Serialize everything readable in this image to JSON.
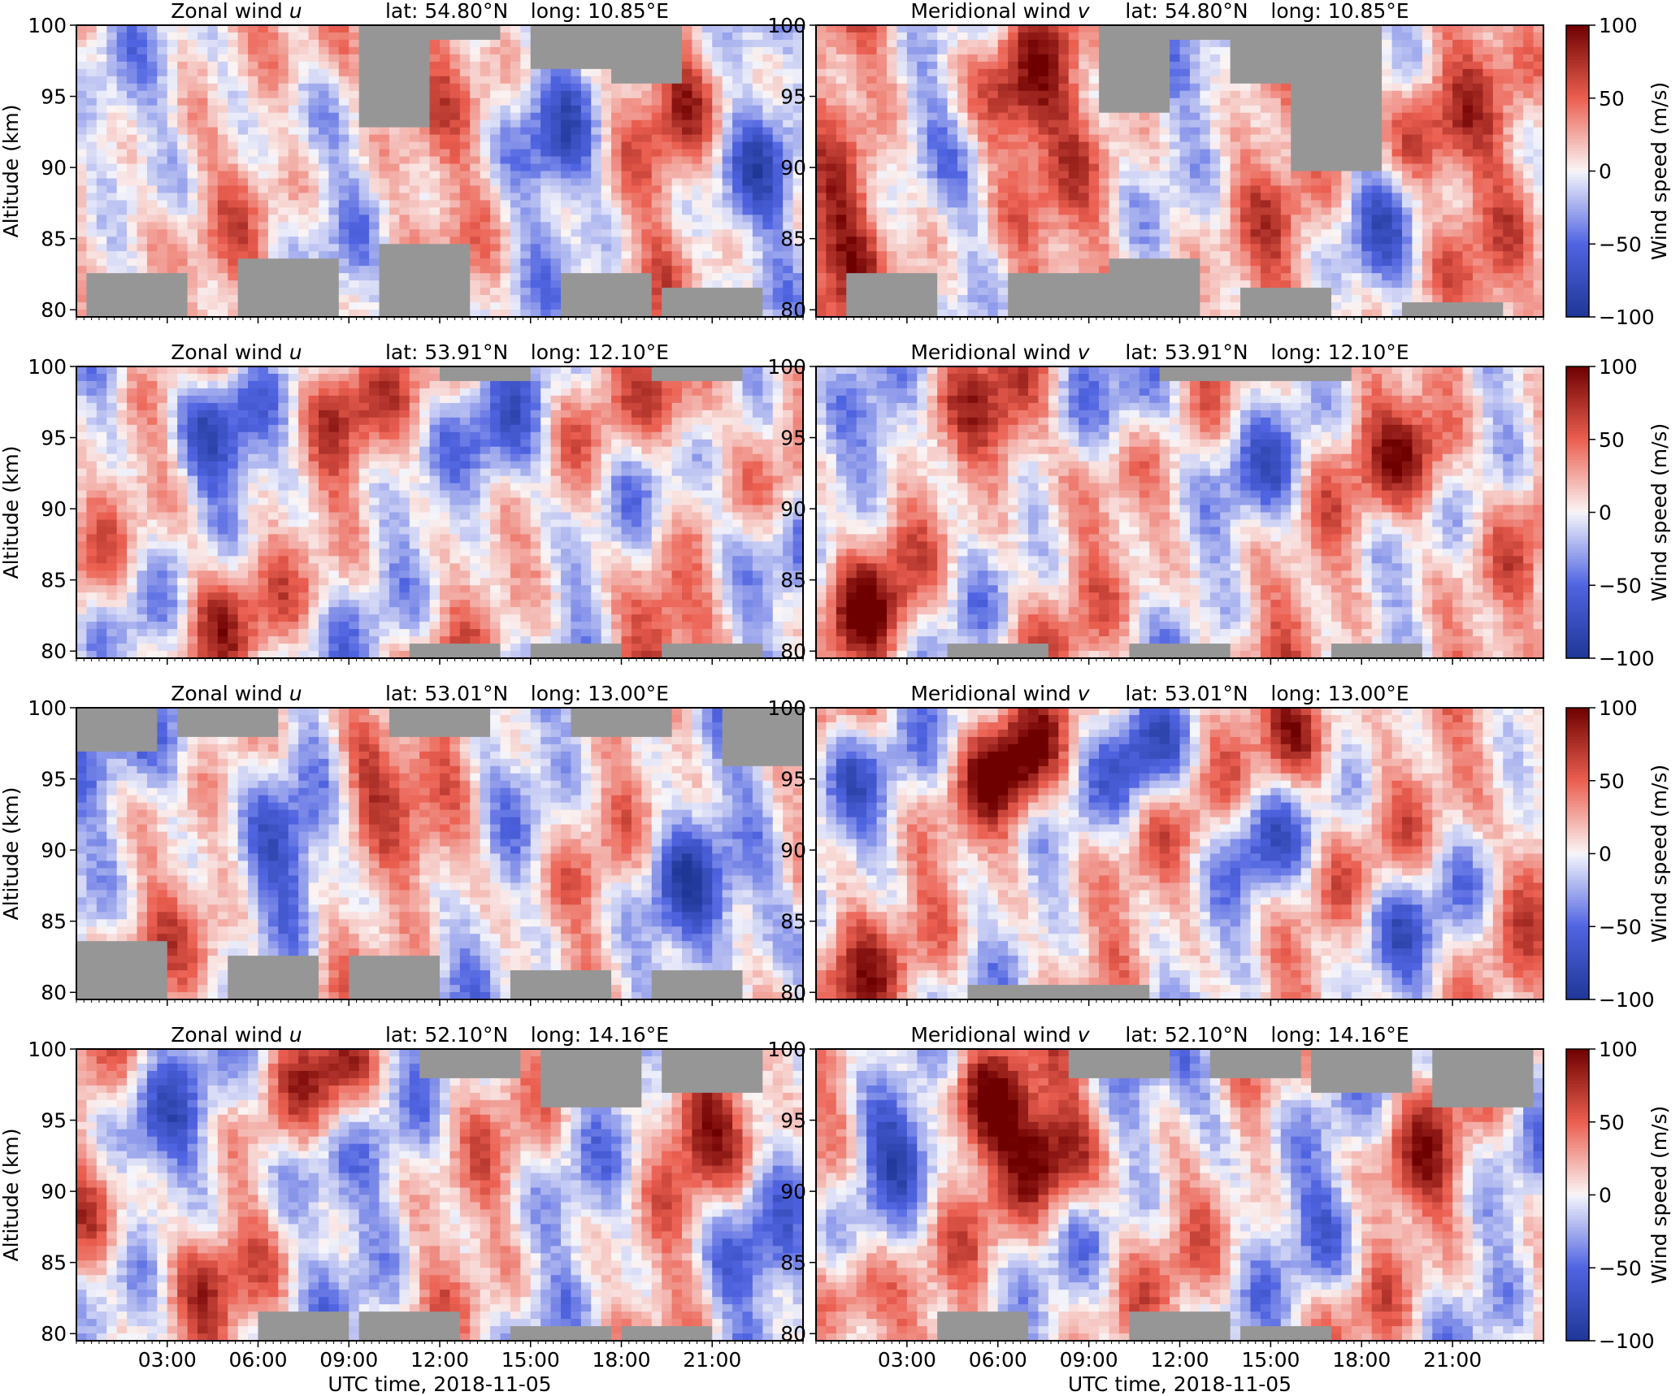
{
  "figure": {
    "xlabel": "UTC time, 2018-11-05",
    "ylabel": "Altitude (km)",
    "colorbar_label": "Wind speed (m/s)",
    "colormap": "seismic (blue-white-red)",
    "missing_data_color": "#969696"
  },
  "chart_data": [
    {
      "type": "heatmap",
      "component": "Zonal wind",
      "symbol": "u",
      "lat": "lat: 54.80°N",
      "long": "long: 10.85°E",
      "x_ticks": [
        "03:00",
        "06:00",
        "09:00",
        "12:00",
        "15:00",
        "18:00",
        "21:00"
      ],
      "y_ticks": [
        "80",
        "85",
        "90",
        "95",
        "100"
      ],
      "x_range_hours": [
        0,
        24
      ],
      "y_range_km": [
        80,
        100
      ],
      "c_range": [
        -100,
        100
      ],
      "seed": 11,
      "bias": 8,
      "amp": 55,
      "diag": 0.0,
      "red_blobs": [
        [
          8.7,
          98,
          45
        ],
        [
          20.2,
          95,
          40
        ],
        [
          1.5,
          86,
          35
        ]
      ],
      "blue_blobs": [
        [
          5.0,
          96,
          -40
        ],
        [
          16.0,
          92,
          -45
        ],
        [
          22.5,
          90,
          -40
        ]
      ],
      "gap_top_to": [
        [
          11.0,
          93
        ],
        [
          12.5,
          99
        ],
        [
          16.5,
          97
        ],
        [
          18.5,
          96
        ]
      ],
      "gap_bottom_from": [
        [
          2.0,
          83
        ],
        [
          7.0,
          84
        ],
        [
          11.5,
          85
        ],
        [
          17.5,
          83
        ],
        [
          21.0,
          82
        ]
      ]
    },
    {
      "type": "heatmap",
      "component": "Meridional wind",
      "symbol": "v",
      "lat": "lat: 54.80°N",
      "long": "long: 10.85°E",
      "x_ticks": [
        "03:00",
        "06:00",
        "09:00",
        "12:00",
        "15:00",
        "18:00",
        "21:00"
      ],
      "y_ticks": [
        "80",
        "85",
        "90",
        "95",
        "100"
      ],
      "x_range_hours": [
        0,
        24
      ],
      "y_range_km": [
        80,
        100
      ],
      "c_range": [
        -100,
        100
      ],
      "seed": 23,
      "bias": 18,
      "amp": 55,
      "diag": 0.0,
      "red_blobs": [
        [
          6.5,
          95,
          70
        ],
        [
          20.0,
          93,
          45
        ],
        [
          0.5,
          85,
          45
        ]
      ],
      "blue_blobs": [
        [
          3.0,
          93,
          -35
        ],
        [
          13.5,
          96,
          -45
        ],
        [
          18.5,
          86,
          -40
        ]
      ],
      "gap_top_to": [
        [
          11.0,
          94
        ],
        [
          12.5,
          99
        ],
        [
          14.5,
          96
        ],
        [
          17.0,
          90
        ]
      ],
      "gap_bottom_from": [
        [
          2.5,
          83
        ],
        [
          8.0,
          83
        ],
        [
          11.0,
          84
        ],
        [
          15.5,
          82
        ],
        [
          21.0,
          81
        ]
      ]
    },
    {
      "type": "heatmap",
      "component": "Zonal wind",
      "symbol": "u",
      "lat": "lat: 53.91°N",
      "long": "long: 12.10°E",
      "x_ticks": [
        "03:00",
        "06:00",
        "09:00",
        "12:00",
        "15:00",
        "18:00",
        "21:00"
      ],
      "y_ticks": [
        "80",
        "85",
        "90",
        "95",
        "100"
      ],
      "x_range_hours": [
        0,
        24
      ],
      "y_range_km": [
        80,
        100
      ],
      "c_range": [
        -100,
        100
      ],
      "seed": 37,
      "bias": 5,
      "amp": 55,
      "diag": -3.0,
      "red_blobs": [
        [
          8.5,
          98,
          60
        ],
        [
          20.0,
          97,
          60
        ],
        [
          4.5,
          84,
          50
        ],
        [
          19.0,
          83,
          45
        ]
      ],
      "blue_blobs": [
        [
          4.5,
          96,
          -75
        ],
        [
          14.5,
          94,
          -50
        ],
        [
          22.0,
          88,
          -40
        ]
      ],
      "gap_top_to": [
        [
          13.5,
          99
        ],
        [
          20.5,
          99
        ]
      ],
      "gap_bottom_from": [
        [
          12.5,
          81
        ],
        [
          16.5,
          81
        ],
        [
          21.0,
          81
        ]
      ]
    },
    {
      "type": "heatmap",
      "component": "Meridional wind",
      "symbol": "v",
      "lat": "lat: 53.91°N",
      "long": "long: 12.10°E",
      "x_ticks": [
        "03:00",
        "06:00",
        "09:00",
        "12:00",
        "15:00",
        "18:00",
        "21:00"
      ],
      "y_ticks": [
        "80",
        "85",
        "90",
        "95",
        "100"
      ],
      "x_range_hours": [
        0,
        24
      ],
      "y_range_km": [
        80,
        100
      ],
      "c_range": [
        -100,
        100
      ],
      "seed": 51,
      "bias": 12,
      "amp": 55,
      "diag": -2.5,
      "red_blobs": [
        [
          6.5,
          96,
          60
        ],
        [
          20.0,
          93,
          65
        ],
        [
          2.0,
          83,
          55
        ]
      ],
      "blue_blobs": [
        [
          2.5,
          95,
          -40
        ],
        [
          11.0,
          97,
          -55
        ],
        [
          15.0,
          92,
          -40
        ]
      ],
      "gap_top_to": [
        [
          13.0,
          99
        ],
        [
          16.0,
          99
        ]
      ],
      "gap_bottom_from": [
        [
          6.0,
          81
        ],
        [
          12.0,
          81
        ],
        [
          18.5,
          81
        ]
      ]
    },
    {
      "type": "heatmap",
      "component": "Zonal wind",
      "symbol": "u",
      "lat": "lat: 53.01°N",
      "long": "long: 13.00°E",
      "x_ticks": [
        "03:00",
        "06:00",
        "09:00",
        "12:00",
        "15:00",
        "18:00",
        "21:00"
      ],
      "y_ticks": [
        "80",
        "85",
        "90",
        "95",
        "100"
      ],
      "x_range_hours": [
        0,
        24
      ],
      "y_range_km": [
        80,
        100
      ],
      "c_range": [
        -100,
        100
      ],
      "seed": 67,
      "bias": 2,
      "amp": 55,
      "diag": -1.5,
      "red_blobs": [
        [
          9.5,
          97,
          60
        ],
        [
          12.5,
          90,
          45
        ],
        [
          4.5,
          82,
          45
        ]
      ],
      "blue_blobs": [
        [
          3.5,
          97,
          -50
        ],
        [
          7.0,
          90,
          -40
        ],
        [
          20.0,
          88,
          -45
        ],
        [
          23.0,
          85,
          -55
        ]
      ],
      "gap_top_to": [
        [
          1.0,
          97
        ],
        [
          5.0,
          98
        ],
        [
          12.0,
          98
        ],
        [
          18.0,
          98
        ],
        [
          23.0,
          96
        ]
      ],
      "gap_bottom_from": [
        [
          1.5,
          84
        ],
        [
          6.5,
          83
        ],
        [
          10.5,
          83
        ],
        [
          16.0,
          82
        ],
        [
          20.5,
          82
        ]
      ]
    },
    {
      "type": "heatmap",
      "component": "Meridional wind",
      "symbol": "v",
      "lat": "lat: 53.01°N",
      "long": "long: 13.00°E",
      "x_ticks": [
        "03:00",
        "06:00",
        "09:00",
        "12:00",
        "15:00",
        "18:00",
        "21:00"
      ],
      "y_ticks": [
        "80",
        "85",
        "90",
        "95",
        "100"
      ],
      "x_range_hours": [
        0,
        24
      ],
      "y_range_km": [
        80,
        100
      ],
      "c_range": [
        -100,
        100
      ],
      "seed": 79,
      "bias": 10,
      "amp": 55,
      "diag": -3.0,
      "red_blobs": [
        [
          6.5,
          96,
          75
        ],
        [
          16.0,
          98,
          60
        ],
        [
          0.8,
          83,
          55
        ],
        [
          23.5,
          90,
          40
        ]
      ],
      "blue_blobs": [
        [
          0.8,
          95,
          -50
        ],
        [
          11.0,
          97,
          -55
        ],
        [
          14.5,
          91,
          -40
        ],
        [
          19.0,
          85,
          -45
        ]
      ],
      "gap_top_to": [],
      "gap_bottom_from": [
        [
          6.5,
          81
        ],
        [
          9.5,
          81
        ]
      ]
    },
    {
      "type": "heatmap",
      "component": "Zonal wind",
      "symbol": "u",
      "lat": "lat: 52.10°N",
      "long": "long: 14.16°E",
      "x_ticks": [
        "03:00",
        "06:00",
        "09:00",
        "12:00",
        "15:00",
        "18:00",
        "21:00"
      ],
      "y_ticks": [
        "80",
        "85",
        "90",
        "95",
        "100"
      ],
      "x_range_hours": [
        0,
        24
      ],
      "y_range_km": [
        80,
        100
      ],
      "c_range": [
        -100,
        100
      ],
      "seed": 97,
      "bias": 5,
      "amp": 55,
      "diag": -1.5,
      "red_blobs": [
        [
          8.5,
          99,
          55
        ],
        [
          20.5,
          95,
          55
        ],
        [
          4.0,
          85,
          45
        ],
        [
          1.0,
          88,
          35
        ]
      ],
      "blue_blobs": [
        [
          2.5,
          95,
          -45
        ],
        [
          7.5,
          91,
          -40
        ],
        [
          22.0,
          86,
          -45
        ]
      ],
      "gap_top_to": [
        [
          13.0,
          98
        ],
        [
          17.0,
          96
        ],
        [
          21.0,
          97
        ]
      ],
      "gap_bottom_from": [
        [
          7.5,
          82
        ],
        [
          11.0,
          82
        ],
        [
          16.0,
          81
        ],
        [
          19.5,
          81
        ]
      ]
    },
    {
      "type": "heatmap",
      "component": "Meridional wind",
      "symbol": "v",
      "lat": "lat: 52.10°N",
      "long": "long: 14.16°E",
      "x_ticks": [
        "03:00",
        "06:00",
        "09:00",
        "12:00",
        "15:00",
        "18:00",
        "21:00"
      ],
      "y_ticks": [
        "80",
        "85",
        "90",
        "95",
        "100"
      ],
      "x_range_hours": [
        0,
        24
      ],
      "y_range_km": [
        80,
        100
      ],
      "c_range": [
        -100,
        100
      ],
      "seed": 113,
      "bias": 8,
      "amp": 55,
      "diag": -2.0,
      "red_blobs": [
        [
          5.5,
          96,
          80
        ],
        [
          8.0,
          93,
          90
        ],
        [
          1.0,
          83,
          55
        ],
        [
          20.0,
          92,
          40
        ]
      ],
      "blue_blobs": [
        [
          2.5,
          94,
          -60
        ],
        [
          13.0,
          96,
          -45
        ],
        [
          17.0,
          88,
          -35
        ]
      ],
      "gap_top_to": [
        [
          10.0,
          98
        ],
        [
          14.5,
          98
        ],
        [
          18.0,
          97
        ],
        [
          22.0,
          96
        ]
      ],
      "gap_bottom_from": [
        [
          5.5,
          82
        ],
        [
          12.0,
          82
        ],
        [
          15.5,
          81
        ]
      ]
    }
  ]
}
